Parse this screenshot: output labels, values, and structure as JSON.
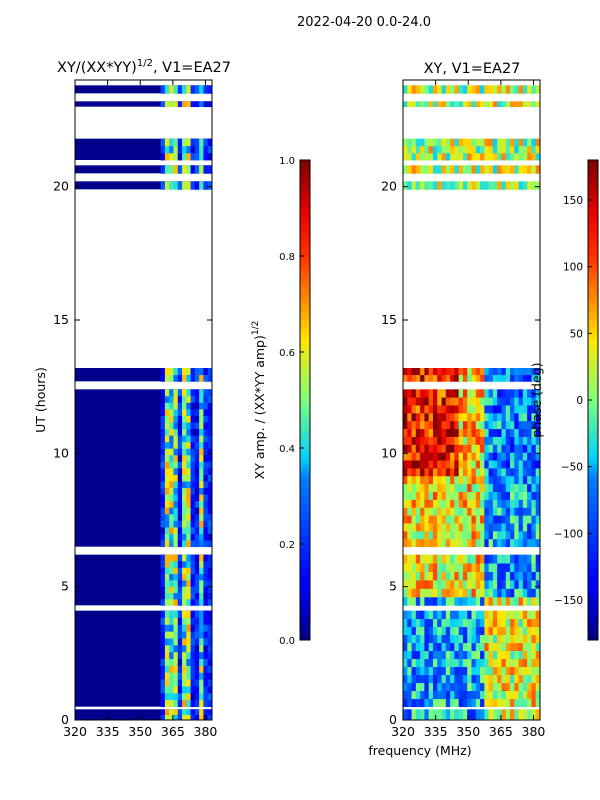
{
  "suptitle": "2022-04-20 0.0-24.0",
  "xlabel": "frequency (MHz)",
  "chart_data": [
    {
      "type": "heatmap",
      "title_main": "XY/(XX*YY)",
      "title_sup": "1/2",
      "title_rest": ", V1=EA27",
      "xlabel": "",
      "ylabel": "UT (hours)",
      "xlim": [
        320,
        383
      ],
      "ylim": [
        0,
        24
      ],
      "xticks": [
        320,
        335,
        350,
        365,
        380
      ],
      "yticks": [
        0,
        5,
        10,
        15,
        20
      ],
      "data_bands": [
        [
          0,
          0.4
        ],
        [
          0.5,
          4.1
        ],
        [
          4.3,
          6.2
        ],
        [
          6.5,
          12.4
        ],
        [
          12.7,
          13.2
        ],
        [
          19.9,
          20.2
        ],
        [
          20.5,
          20.8
        ],
        [
          21.0,
          21.8
        ],
        [
          23.0,
          23.2
        ],
        [
          23.5,
          23.8
        ]
      ],
      "hot_channels": [
        [
          362,
          367
        ],
        [
          370,
          374
        ],
        [
          377,
          380
        ]
      ],
      "colorbar": {
        "label_main": "XY amp. / (XX*YY amp)",
        "label_sup": "1/2",
        "min": 0.0,
        "max": 1.0,
        "ticks": [
          "0.0",
          "0.2",
          "0.4",
          "0.6",
          "0.8",
          "1.0"
        ]
      }
    },
    {
      "type": "heatmap",
      "title": "XY, V1=EA27",
      "xlabel": "",
      "ylabel": "",
      "xlim": [
        320,
        383
      ],
      "ylim": [
        0,
        24
      ],
      "xticks": [
        320,
        335,
        350,
        365,
        380
      ],
      "yticks": [
        0,
        5,
        10,
        15,
        20
      ],
      "data_bands": [
        [
          0,
          0.4
        ],
        [
          0.5,
          4.1
        ],
        [
          4.3,
          6.2
        ],
        [
          6.5,
          12.4
        ],
        [
          12.7,
          13.2
        ],
        [
          19.9,
          20.2
        ],
        [
          20.5,
          20.8
        ],
        [
          21.0,
          21.8
        ],
        [
          23.0,
          23.2
        ],
        [
          23.5,
          23.8
        ]
      ],
      "colorbar": {
        "label": "phase (deg)",
        "min": -180,
        "max": 180,
        "ticks": [
          "150",
          "100",
          "50",
          "0",
          "−50",
          "−100",
          "−150"
        ],
        "tick_values": [
          150,
          100,
          50,
          0,
          -50,
          -100,
          -150
        ]
      }
    }
  ],
  "colors": {
    "jet_low": "#00007f",
    "jet_high": "#7f0000"
  }
}
